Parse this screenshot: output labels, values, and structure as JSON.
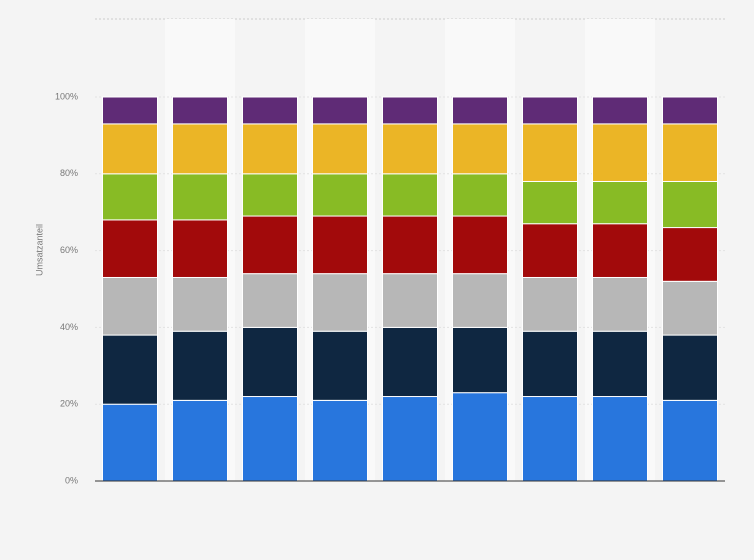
{
  "chart_data": {
    "type": "stacked-bar",
    "y_label": "Umsatzanteil",
    "categories": [
      null,
      null,
      null,
      null,
      null,
      null,
      null,
      null,
      null
    ],
    "series": [
      {
        "color": "#2876dd",
        "values": [
          20,
          21,
          22,
          21,
          22,
          23,
          22,
          22,
          21
        ]
      },
      {
        "color": "#0f2741",
        "values": [
          18,
          18,
          18,
          18,
          18,
          17,
          17,
          17,
          17
        ]
      },
      {
        "color": "#b7b7b7",
        "values": [
          15,
          14,
          14,
          15,
          14,
          14,
          14,
          14,
          14
        ]
      },
      {
        "color": "#a20a0b",
        "values": [
          15,
          15,
          15,
          15,
          15,
          15,
          14,
          14,
          14
        ]
      },
      {
        "color": "#88bb25",
        "values": [
          12,
          12,
          11,
          11,
          11,
          11,
          11,
          11,
          12
        ]
      },
      {
        "color": "#ebb526",
        "values": [
          13,
          13,
          13,
          13,
          13,
          13,
          15,
          15,
          15
        ]
      },
      {
        "color": "#5f2b76",
        "values": [
          7,
          7,
          7,
          7,
          7,
          7,
          7,
          7,
          7
        ]
      }
    ],
    "ylim": [
      0,
      100
    ],
    "yticks": [
      {
        "value": 0,
        "label": "0%"
      },
      {
        "value": 20,
        "label": "20%"
      },
      {
        "value": 40,
        "label": "40%"
      },
      {
        "value": 60,
        "label": "60%"
      },
      {
        "value": 80,
        "label": "80%"
      },
      {
        "value": 100,
        "label": "100%"
      }
    ],
    "grid": true
  }
}
